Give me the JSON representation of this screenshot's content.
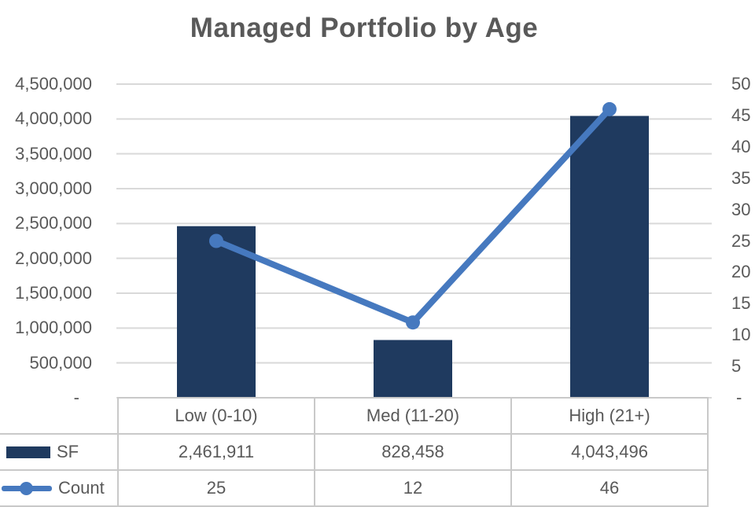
{
  "chart_data": {
    "type": "combo_bar_line",
    "title": "Managed Portfolio by Age",
    "categories": [
      "Low (0-10)",
      "Med (11-20)",
      "High (21+)"
    ],
    "series": [
      {
        "name": "SF",
        "type": "bar",
        "axis": "left",
        "color": "#1f3a5f",
        "values": [
          2461911,
          828458,
          4043496
        ],
        "value_labels": [
          "2,461,911",
          "828,458",
          "4,043,496"
        ]
      },
      {
        "name": "Count",
        "type": "line",
        "axis": "right",
        "color": "#4679bf",
        "values": [
          25,
          12,
          46
        ],
        "value_labels": [
          "25",
          "12",
          "46"
        ]
      }
    ],
    "left_axis": {
      "min": 0,
      "max": 4500000,
      "step": 500000,
      "tick_labels_top_to_bottom": [
        "4,500,000",
        "4,000,000",
        "3,500,000",
        "3,000,000",
        "2,500,000",
        "2,000,000",
        "1,500,000",
        "1,000,000",
        "500,000",
        "-"
      ]
    },
    "right_axis": {
      "min": 0,
      "max": 50,
      "step": 5,
      "tick_labels_top_to_bottom": [
        "50",
        "45",
        "40",
        "35",
        "30",
        "25",
        "20",
        "15",
        "10",
        "5",
        "-"
      ]
    },
    "gridlines": true,
    "legend_position": "data-table-left",
    "colors": {
      "grid": "#d9d9d9",
      "table_border": "#c9c9c9",
      "text": "#595959"
    }
  }
}
